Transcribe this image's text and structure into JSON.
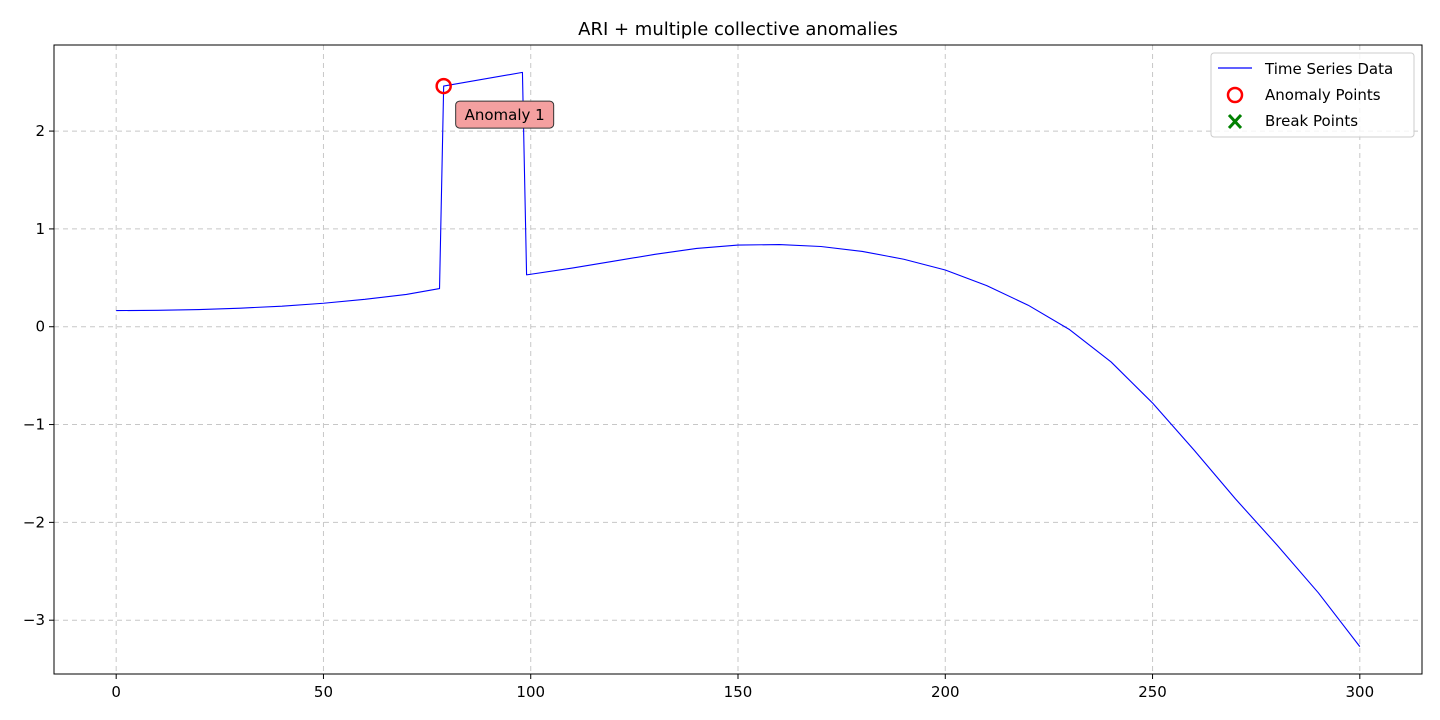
{
  "chart_data": {
    "type": "line",
    "title": "ARI + multiple collective anomalies",
    "xlabel": "",
    "ylabel": "",
    "xlim": [
      -15,
      315
    ],
    "ylim": [
      -3.55,
      2.88
    ],
    "xticks": [
      0,
      50,
      100,
      150,
      200,
      250,
      300
    ],
    "yticks": [
      -3,
      -2,
      -1,
      0,
      1,
      2
    ],
    "xtick_labels": [
      "0",
      "50",
      "100",
      "150",
      "200",
      "250",
      "300"
    ],
    "ytick_labels": [
      "−3",
      "−2",
      "−1",
      "0",
      "1",
      "2"
    ],
    "grid": true,
    "legend_position": "top-right",
    "series": [
      {
        "name": "Time Series Data",
        "color": "#0000ff",
        "points": [
          [
            0,
            0.165
          ],
          [
            10,
            0.168
          ],
          [
            20,
            0.175
          ],
          [
            30,
            0.19
          ],
          [
            40,
            0.21
          ],
          [
            50,
            0.24
          ],
          [
            60,
            0.28
          ],
          [
            70,
            0.33
          ],
          [
            78,
            0.39
          ],
          [
            79,
            2.46
          ],
          [
            98,
            2.6
          ],
          [
            99,
            0.53
          ],
          [
            110,
            0.6
          ],
          [
            120,
            0.67
          ],
          [
            130,
            0.74
          ],
          [
            140,
            0.8
          ],
          [
            150,
            0.835
          ],
          [
            160,
            0.84
          ],
          [
            170,
            0.82
          ],
          [
            180,
            0.77
          ],
          [
            190,
            0.69
          ],
          [
            200,
            0.58
          ],
          [
            210,
            0.42
          ],
          [
            220,
            0.22
          ],
          [
            230,
            -0.03
          ],
          [
            240,
            -0.36
          ],
          [
            250,
            -0.78
          ],
          [
            260,
            -1.26
          ],
          [
            270,
            -1.76
          ],
          [
            280,
            -2.23
          ],
          [
            290,
            -2.72
          ],
          [
            300,
            -3.27
          ]
        ]
      }
    ],
    "anomaly_points": {
      "name": "Anomaly Points",
      "color": "#ff0000",
      "points": [
        [
          79,
          2.46
        ]
      ]
    },
    "break_points": {
      "name": "Break Points",
      "color": "#008000",
      "points": []
    },
    "annotations": [
      {
        "text": "Anomaly 1",
        "x": 79,
        "y": 2.46,
        "box_color": "#f4a0a0"
      }
    ]
  }
}
